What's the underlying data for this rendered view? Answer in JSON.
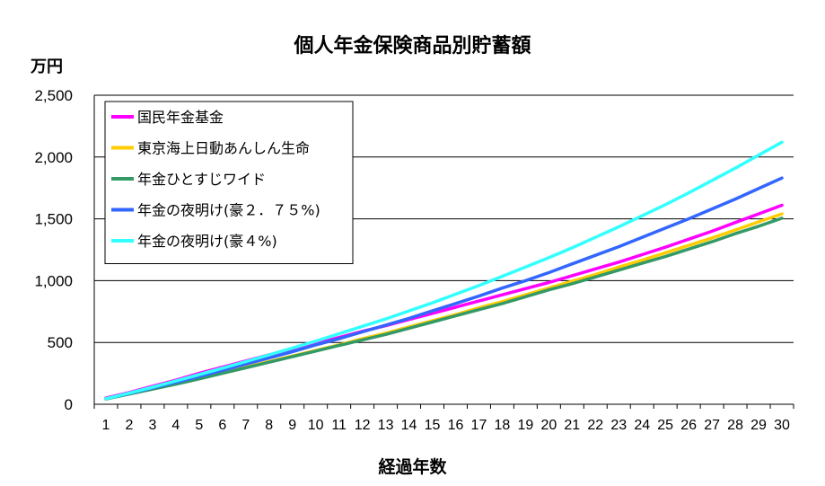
{
  "chart_data": {
    "type": "line",
    "title": "個人年金保険商品別貯蓄額",
    "ylabel": "万円",
    "xlabel": "経過年数",
    "x": [
      1,
      2,
      3,
      4,
      5,
      6,
      7,
      8,
      9,
      10,
      11,
      12,
      13,
      14,
      15,
      16,
      17,
      18,
      19,
      20,
      21,
      22,
      23,
      24,
      25,
      26,
      27,
      28,
      29,
      30
    ],
    "ylim": [
      0,
      2500
    ],
    "yticks": [
      0,
      500,
      1000,
      1500,
      2000,
      2500
    ],
    "ytick_labels": [
      "0",
      "500",
      "1,000",
      "1,500",
      "2,000",
      "2,500"
    ],
    "grid": true,
    "legend": "top-left",
    "series": [
      {
        "name": "国民年金基金",
        "color": "#ff00ff",
        "values": [
          50,
          95,
          145,
          195,
          250,
          300,
          350,
          400,
          445,
          490,
          540,
          590,
          635,
          685,
          735,
          785,
          835,
          885,
          935,
          985,
          1040,
          1095,
          1150,
          1210,
          1270,
          1335,
          1400,
          1470,
          1540,
          1610
        ]
      },
      {
        "name": "東京海上日動あんしん生命",
        "color": "#ffcc00",
        "values": [
          45,
          85,
          125,
          165,
          210,
          255,
          300,
          345,
          390,
          435,
          480,
          530,
          575,
          625,
          675,
          725,
          780,
          830,
          885,
          940,
          995,
          1050,
          1110,
          1165,
          1225,
          1285,
          1345,
          1410,
          1475,
          1540
        ]
      },
      {
        "name": "年金ひとすじワイド",
        "color": "#339966",
        "values": [
          43,
          82,
          122,
          162,
          205,
          250,
          295,
          340,
          385,
          430,
          475,
          520,
          565,
          615,
          665,
          715,
          765,
          815,
          870,
          925,
          975,
          1030,
          1085,
          1140,
          1195,
          1255,
          1315,
          1380,
          1440,
          1505
        ]
      },
      {
        "name": "年金の夜明け(豪２．７５%)",
        "color": "#3366ff",
        "values": [
          45,
          88,
          132,
          178,
          225,
          275,
          325,
          375,
          425,
          480,
          530,
          585,
          640,
          695,
          755,
          815,
          875,
          940,
          1000,
          1065,
          1135,
          1205,
          1275,
          1350,
          1425,
          1500,
          1580,
          1660,
          1745,
          1830
        ]
      },
      {
        "name": "年金の夜明け(豪４%)",
        "color": "#33ffff",
        "values": [
          45,
          90,
          138,
          188,
          240,
          292,
          345,
          400,
          455,
          510,
          570,
          630,
          690,
          755,
          820,
          890,
          960,
          1035,
          1110,
          1185,
          1265,
          1350,
          1435,
          1525,
          1615,
          1710,
          1810,
          1910,
          2015,
          2120
        ]
      }
    ]
  }
}
